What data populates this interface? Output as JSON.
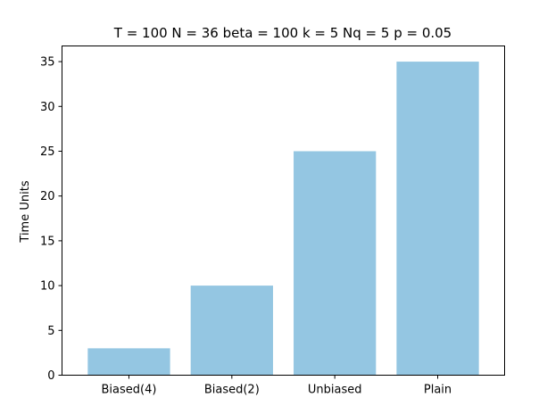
{
  "chart_data": {
    "type": "bar",
    "title": "T = 100 N = 36 beta = 100 k = 5 Nq = 5 p = 0.05",
    "xlabel": "",
    "ylabel": "Time Units",
    "categories": [
      "Biased(4)",
      "Biased(2)",
      "Unbiased",
      "Plain"
    ],
    "values": [
      3,
      10,
      25,
      35
    ],
    "ylim": [
      0,
      36.75
    ],
    "yticks": [
      0,
      5,
      10,
      15,
      20,
      25,
      30,
      35
    ],
    "bar_color": "#94c6e2",
    "grid": false,
    "legend": "none"
  }
}
